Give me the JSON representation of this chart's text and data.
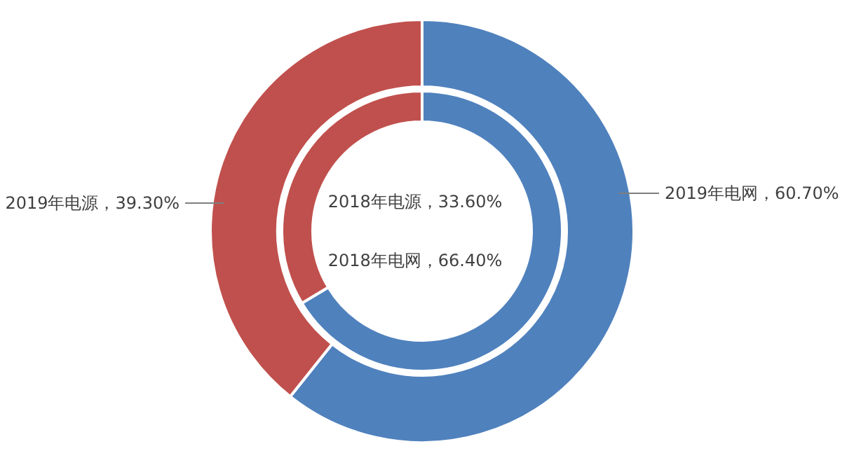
{
  "chart_data": [
    {
      "type": "donut",
      "categories": [
        "2019年电网",
        "2019年电源"
      ],
      "values": [
        60.7,
        39.3
      ],
      "value_labels": [
        "60.70%",
        "39.30%"
      ],
      "colors": [
        "#4f81bd",
        "#c0504d"
      ]
    },
    {
      "type": "donut",
      "categories": [
        "2018年电网",
        "2018年电源"
      ],
      "values": [
        66.4,
        33.6
      ],
      "value_labels": [
        "66.40%",
        "33.60%"
      ],
      "colors": [
        "#4f81bd",
        "#c0504d"
      ]
    }
  ]
}
